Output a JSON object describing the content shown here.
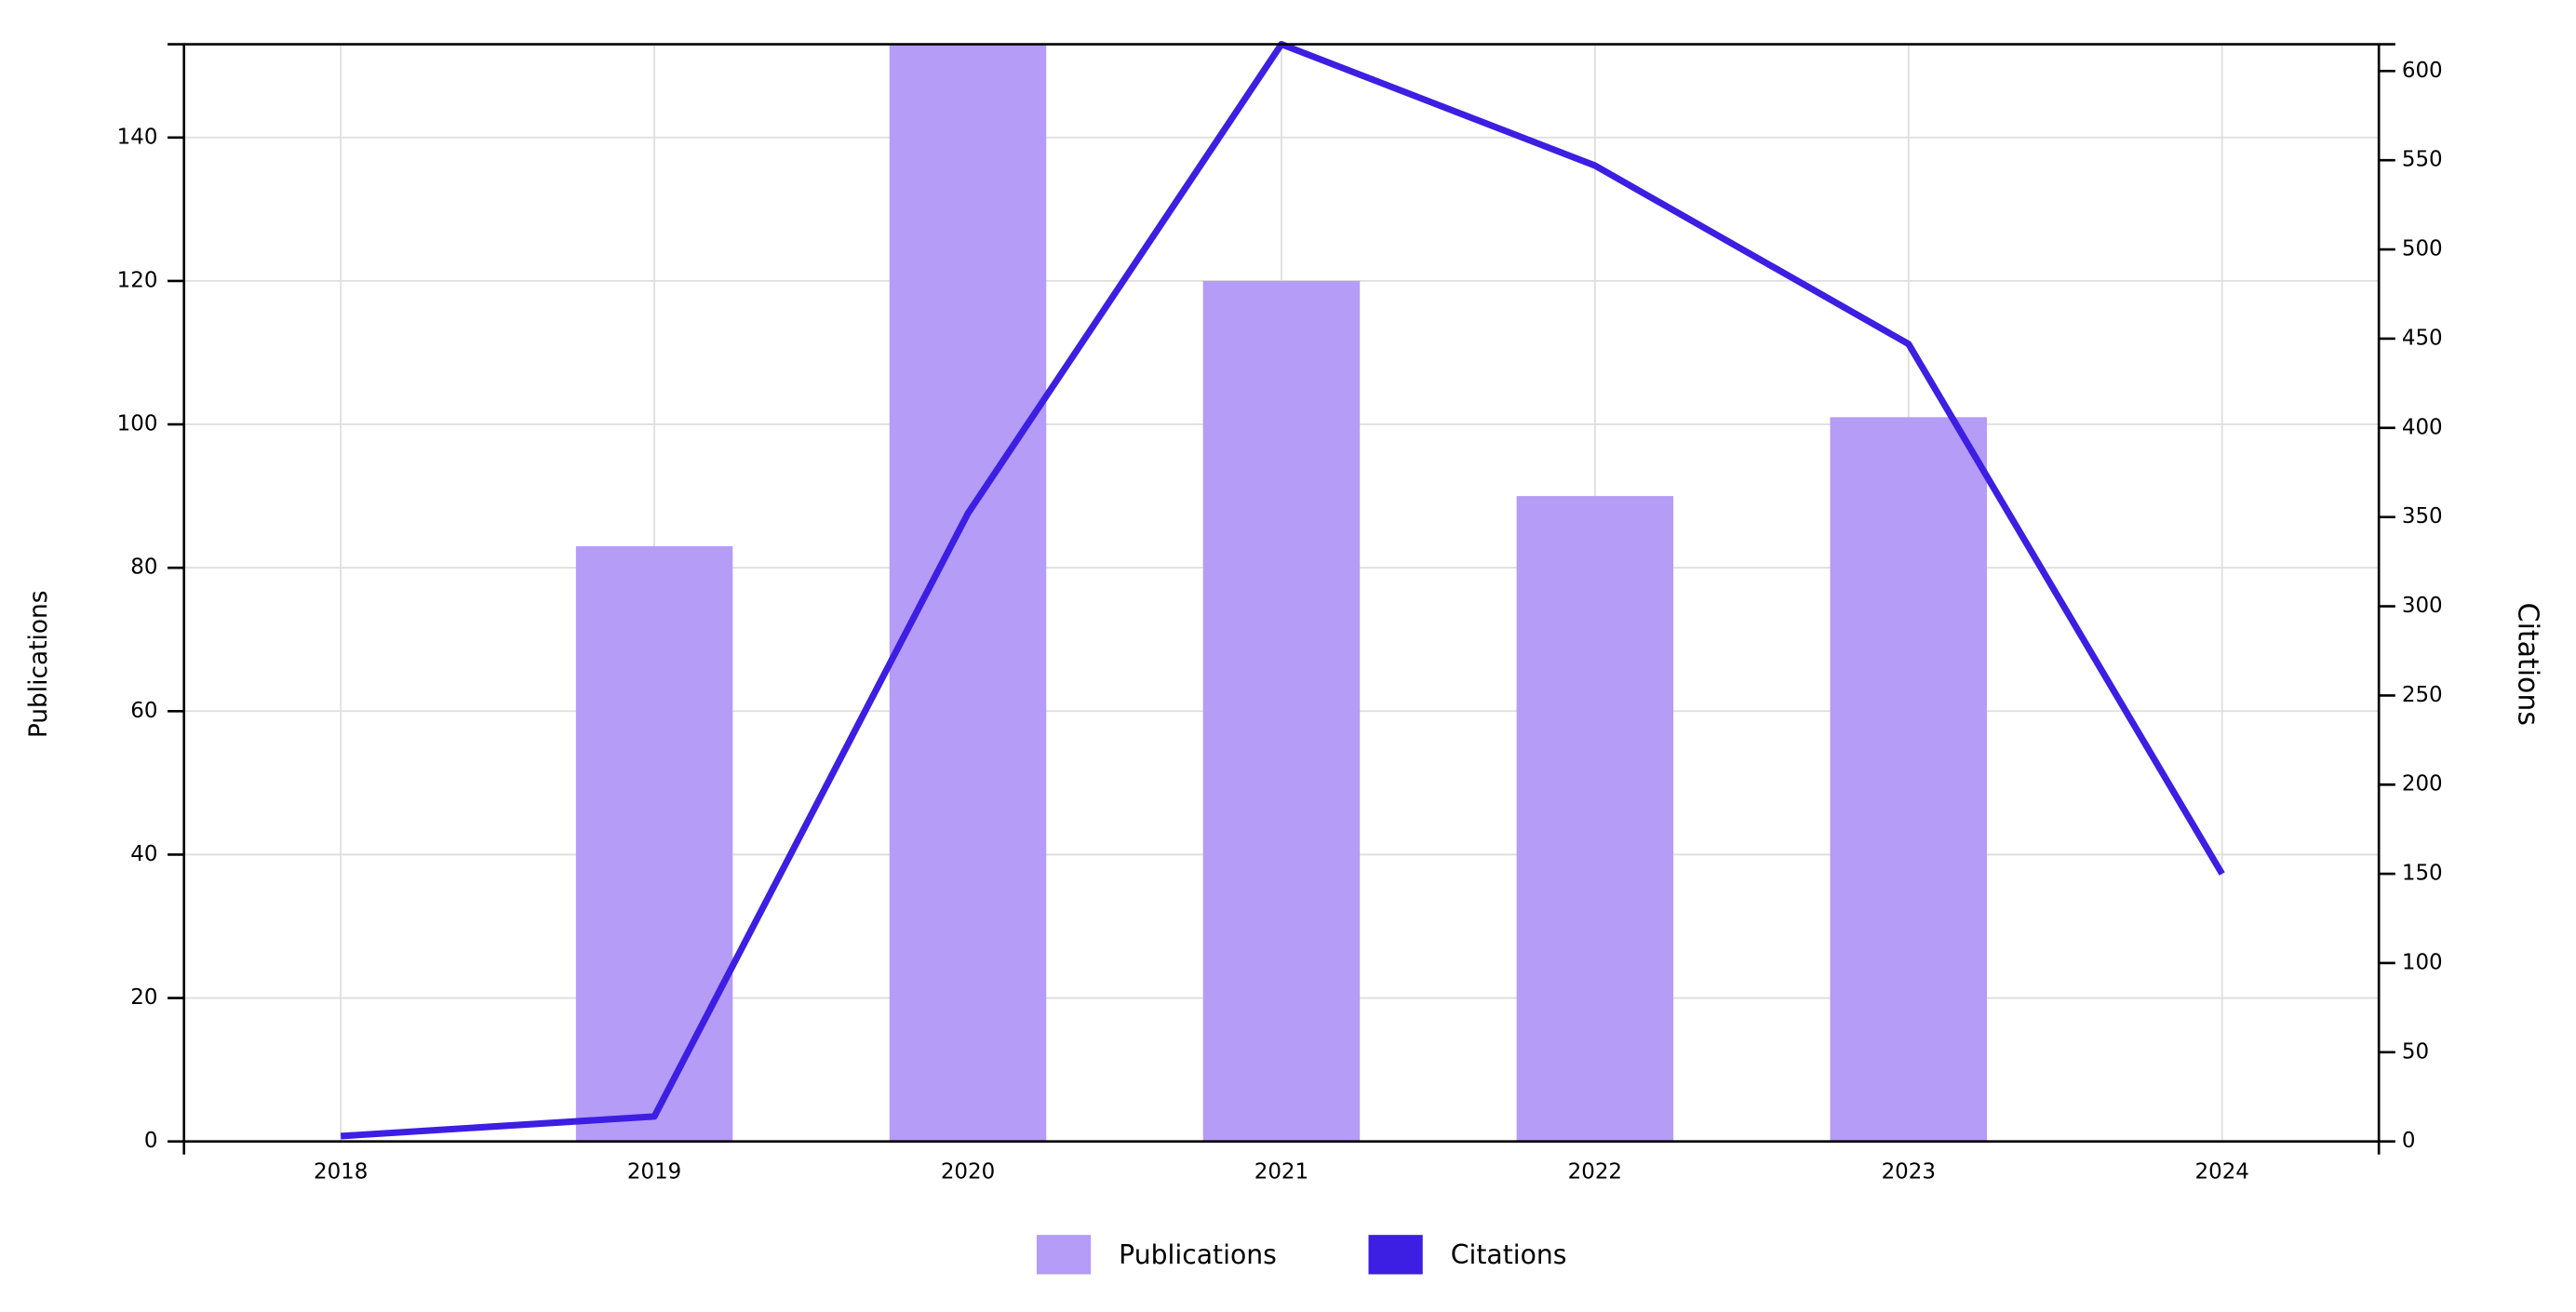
{
  "chart_data": {
    "type": "bar-line",
    "categories": [
      "2018",
      "2019",
      "2020",
      "2021",
      "2022",
      "2023",
      "2024"
    ],
    "series": [
      {
        "name": "Publications",
        "color": "#b49cf7",
        "type": "bar",
        "values": [
          null,
          83,
          153,
          120,
          90,
          101,
          null
        ]
      },
      {
        "name": "Citations",
        "color": "#3d1ee3",
        "type": "line",
        "axis": "y2",
        "values": [
          3,
          14,
          352,
          615,
          547,
          447,
          150
        ]
      }
    ],
    "ylabel": "Publications",
    "y2label": "Citations",
    "ylim": [
      0,
      153
    ],
    "yticks": [
      0,
      20,
      40,
      60,
      80,
      100,
      120,
      140
    ],
    "y2lim": [
      0,
      615
    ],
    "y2ticks": [
      0,
      50,
      100,
      150,
      200,
      250,
      300,
      350,
      400,
      450,
      500,
      550,
      600
    ],
    "grid": true,
    "legend": "bottom"
  }
}
